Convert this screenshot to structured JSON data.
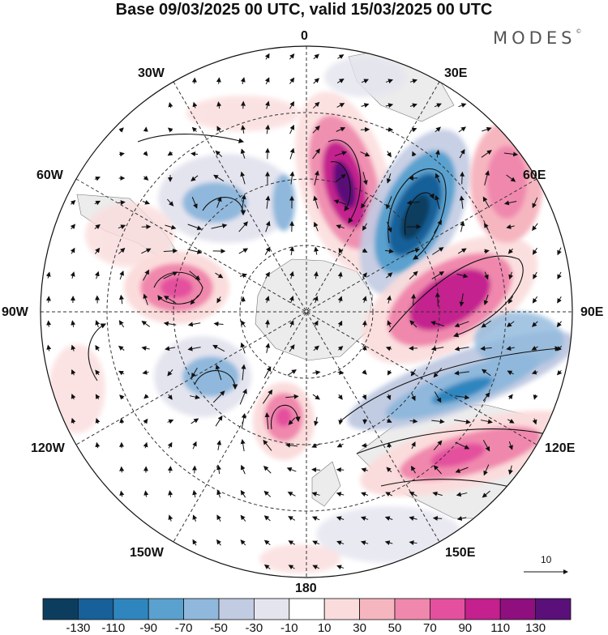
{
  "title": "Base 09/03/2025 00 UTC, valid 15/03/2025 00 UTC",
  "brand": "MODES",
  "brand_mark": "©",
  "longitude_labels": {
    "l0": "0",
    "l30e": "30E",
    "l60e": "60E",
    "l90e": "90E",
    "l120e": "120E",
    "l150e": "150E",
    "l180": "180",
    "l150w": "150W",
    "l120w": "120W",
    "l90w": "90W",
    "l60w": "60W",
    "l30w": "30W"
  },
  "reference_vector": {
    "value": "10"
  },
  "colorbar": {
    "labels": [
      "-130",
      "-110",
      "-90",
      "-70",
      "-50",
      "-30",
      "-10",
      "10",
      "30",
      "50",
      "70",
      "90",
      "110",
      "130"
    ],
    "colors": [
      "#0c3d5e",
      "#17609a",
      "#2f86bf",
      "#5aa1cf",
      "#8fb8dc",
      "#c1cbe2",
      "#e4e4ef",
      "#ffffff",
      "#fbdcdc",
      "#f6b6c0",
      "#f088ad",
      "#e4509e",
      "#c4208e",
      "#8f0f7f",
      "#5a0f79"
    ]
  },
  "field_features": [
    {
      "kind": "positive",
      "peak": "130"
    },
    {
      "kind": "negative",
      "peak": "-130"
    },
    {
      "kind": "positive",
      "peak": "110"
    },
    {
      "kind": "positive",
      "peak": "70"
    },
    {
      "kind": "negative",
      "peak": "-70"
    },
    {
      "kind": "positive",
      "peak": "70"
    },
    {
      "kind": "positive",
      "peak": "70"
    }
  ]
}
